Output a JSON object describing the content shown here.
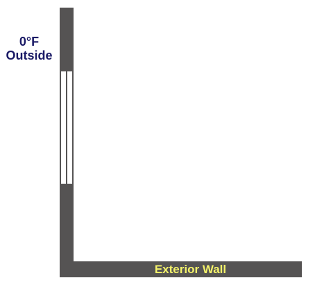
{
  "outside": {
    "temperature": "0°F",
    "label": "Outside"
  },
  "wall": {
    "label": "Exterior Wall"
  },
  "colors": {
    "wall": "#555353",
    "outside_text": "#1a1a66",
    "wall_text": "#f5f36a",
    "background": "#ffffff"
  }
}
